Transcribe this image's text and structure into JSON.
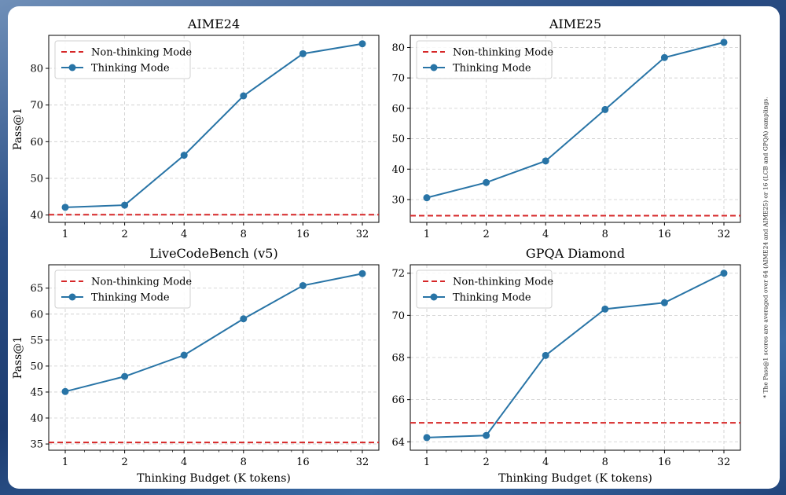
{
  "footnote": "* The Pass@1 scores are averaged over 64 (AIME24 and AIME25) or 16 (LCB and GPQA) samplings.",
  "colors": {
    "thinking": "#2874a6",
    "non_thinking": "#d62728",
    "grid": "#cccccc"
  },
  "chart_data": [
    {
      "type": "line",
      "title": "AIME24",
      "xlabel": "",
      "ylabel": "Pass@1",
      "x": [
        "1",
        "2",
        "4",
        "8",
        "16",
        "32"
      ],
      "ylim": [
        38,
        89
      ],
      "yticks": [
        40,
        50,
        60,
        70,
        80
      ],
      "legend": "top-left",
      "series": [
        {
          "name": "Non-thinking Mode",
          "style": "dashed",
          "value": 40.1
        },
        {
          "name": "Thinking Mode",
          "style": "line-marker",
          "values": [
            42.1,
            42.7,
            56.3,
            72.5,
            84.0,
            86.7
          ]
        }
      ]
    },
    {
      "type": "line",
      "title": "AIME25",
      "xlabel": "",
      "ylabel": "",
      "x": [
        "1",
        "2",
        "4",
        "8",
        "16",
        "32"
      ],
      "ylim": [
        22.5,
        84
      ],
      "yticks": [
        30,
        40,
        50,
        60,
        70,
        80
      ],
      "legend": "top-left",
      "series": [
        {
          "name": "Non-thinking Mode",
          "style": "dashed",
          "value": 24.7
        },
        {
          "name": "Thinking Mode",
          "style": "line-marker",
          "values": [
            30.6,
            35.6,
            42.7,
            59.6,
            76.7,
            81.7
          ]
        }
      ]
    },
    {
      "type": "line",
      "title": "LiveCodeBench (v5)",
      "xlabel": "Thinking Budget (K tokens)",
      "ylabel": "Pass@1",
      "x": [
        "1",
        "2",
        "4",
        "8",
        "16",
        "32"
      ],
      "ylim": [
        33.8,
        69.5
      ],
      "yticks": [
        35,
        40,
        45,
        50,
        55,
        60,
        65
      ],
      "legend": "top-left",
      "series": [
        {
          "name": "Non-thinking Mode",
          "style": "dashed",
          "value": 35.3
        },
        {
          "name": "Thinking Mode",
          "style": "line-marker",
          "values": [
            45.1,
            48.0,
            52.1,
            59.1,
            65.5,
            67.8
          ]
        }
      ]
    },
    {
      "type": "line",
      "title": "GPQA Diamond",
      "xlabel": "Thinking Budget (K tokens)",
      "ylabel": "",
      "x": [
        "1",
        "2",
        "4",
        "8",
        "16",
        "32"
      ],
      "ylim": [
        63.6,
        72.4
      ],
      "yticks": [
        64,
        66,
        68,
        70,
        72
      ],
      "legend": "top-left",
      "series": [
        {
          "name": "Non-thinking Mode",
          "style": "dashed",
          "value": 64.9
        },
        {
          "name": "Thinking Mode",
          "style": "line-marker",
          "values": [
            64.2,
            64.3,
            68.1,
            70.3,
            70.6,
            72.0
          ]
        }
      ]
    }
  ]
}
